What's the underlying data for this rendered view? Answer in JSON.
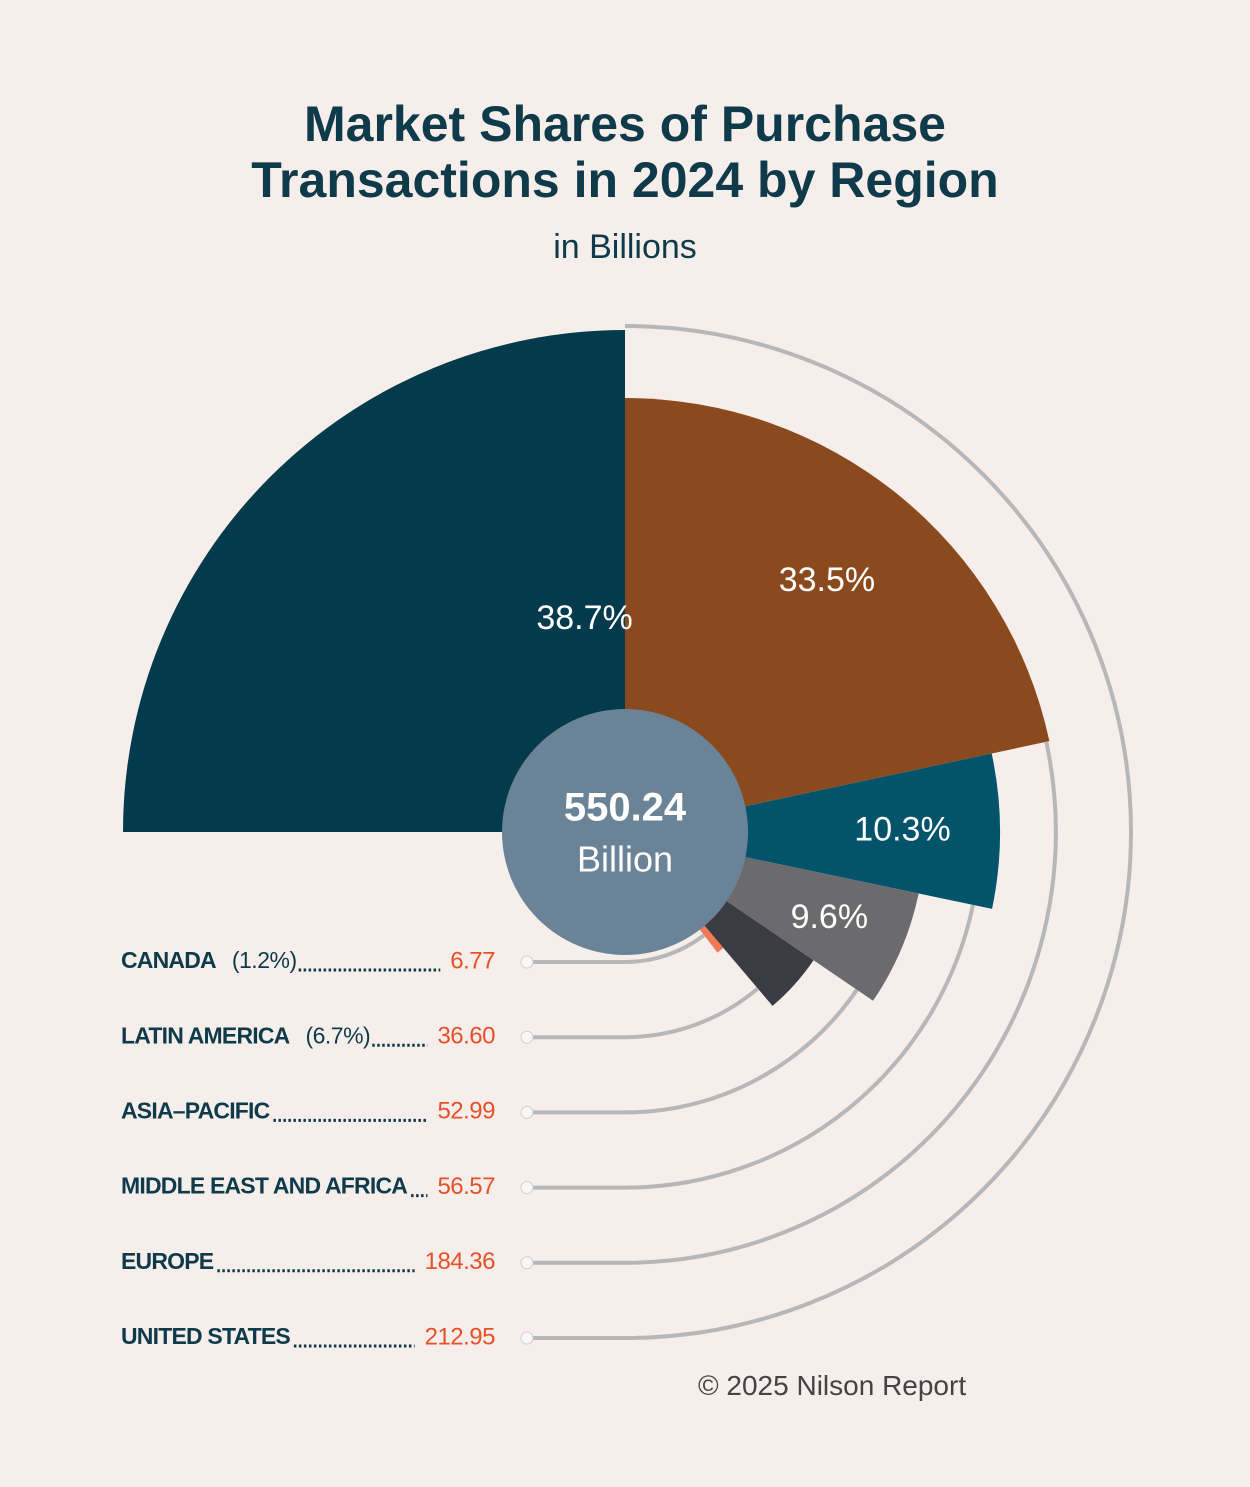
{
  "chart_data": {
    "type": "radial-bar",
    "title": "Market Shares of Purchase Transactions in 2024 by Region",
    "subtitle": "in Billions",
    "categories": [
      "UNITED STATES",
      "EUROPE",
      "MIDDLE EAST AND AFRICA",
      "ASIA–PACIFIC",
      "LATIN AMERICA",
      "CANADA"
    ],
    "values": [
      212.95,
      184.36,
      56.57,
      52.99,
      36.6,
      6.77
    ],
    "value_labels": [
      "212.95",
      "184.36",
      "56.57",
      "52.99",
      "36.60",
      "6.77"
    ],
    "percents": [
      38.7,
      33.5,
      10.3,
      9.6,
      6.7,
      1.2
    ],
    "percent_labels": [
      "38.7%",
      "33.5%",
      "10.3%",
      "9.6%",
      "(6.7%)",
      "(1.2%)"
    ],
    "colors": [
      "#033b4c",
      "#8a4a1e",
      "#03536b",
      "#6b6b6d",
      "#3a3b43",
      "#f07a55"
    ],
    "total": 550.24,
    "total_unit": "Billion",
    "credit": "© 2025 Nilson Report"
  }
}
